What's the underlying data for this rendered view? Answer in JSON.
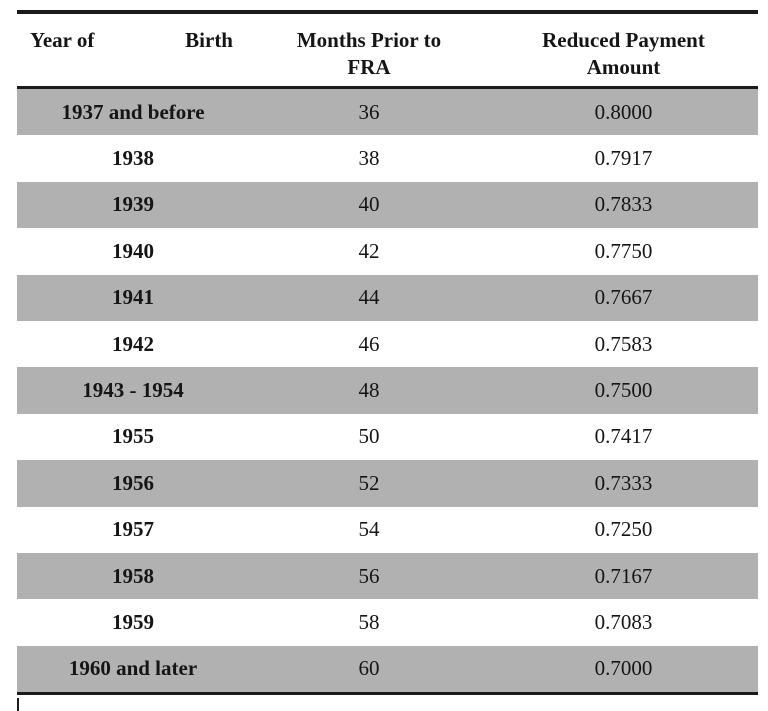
{
  "table": {
    "header": {
      "col1_left": "Year of",
      "col1_right": "Birth",
      "col2_line1": "Months Prior to",
      "col2_line2": "FRA",
      "col3_line1": "Reduced Payment",
      "col3_line2": "Amount"
    },
    "rows": [
      {
        "year": "1937 and before",
        "months": "36",
        "amount": "0.8000",
        "shaded": true
      },
      {
        "year": "1938",
        "months": "38",
        "amount": "0.7917",
        "shaded": false
      },
      {
        "year": "1939",
        "months": "40",
        "amount": "0.7833",
        "shaded": true
      },
      {
        "year": "1940",
        "months": "42",
        "amount": "0.7750",
        "shaded": false
      },
      {
        "year": "1941",
        "months": "44",
        "amount": "0.7667",
        "shaded": true
      },
      {
        "year": "1942",
        "months": "46",
        "amount": "0.7583",
        "shaded": false
      },
      {
        "year": "1943 - 1954",
        "months": "48",
        "amount": "0.7500",
        "shaded": true
      },
      {
        "year": "1955",
        "months": "50",
        "amount": "0.7417",
        "shaded": false
      },
      {
        "year": "1956",
        "months": "52",
        "amount": "0.7333",
        "shaded": true
      },
      {
        "year": "1957",
        "months": "54",
        "amount": "0.7250",
        "shaded": false
      },
      {
        "year": "1958",
        "months": "56",
        "amount": "0.7167",
        "shaded": true
      },
      {
        "year": "1959",
        "months": "58",
        "amount": "0.7083",
        "shaded": false
      },
      {
        "year": "1960 and later",
        "months": "60",
        "amount": "0.7000",
        "shaded": true
      }
    ],
    "colors": {
      "row_shade": "#b1b1b1",
      "rule": "#1b1b1b",
      "text": "#151515"
    }
  }
}
